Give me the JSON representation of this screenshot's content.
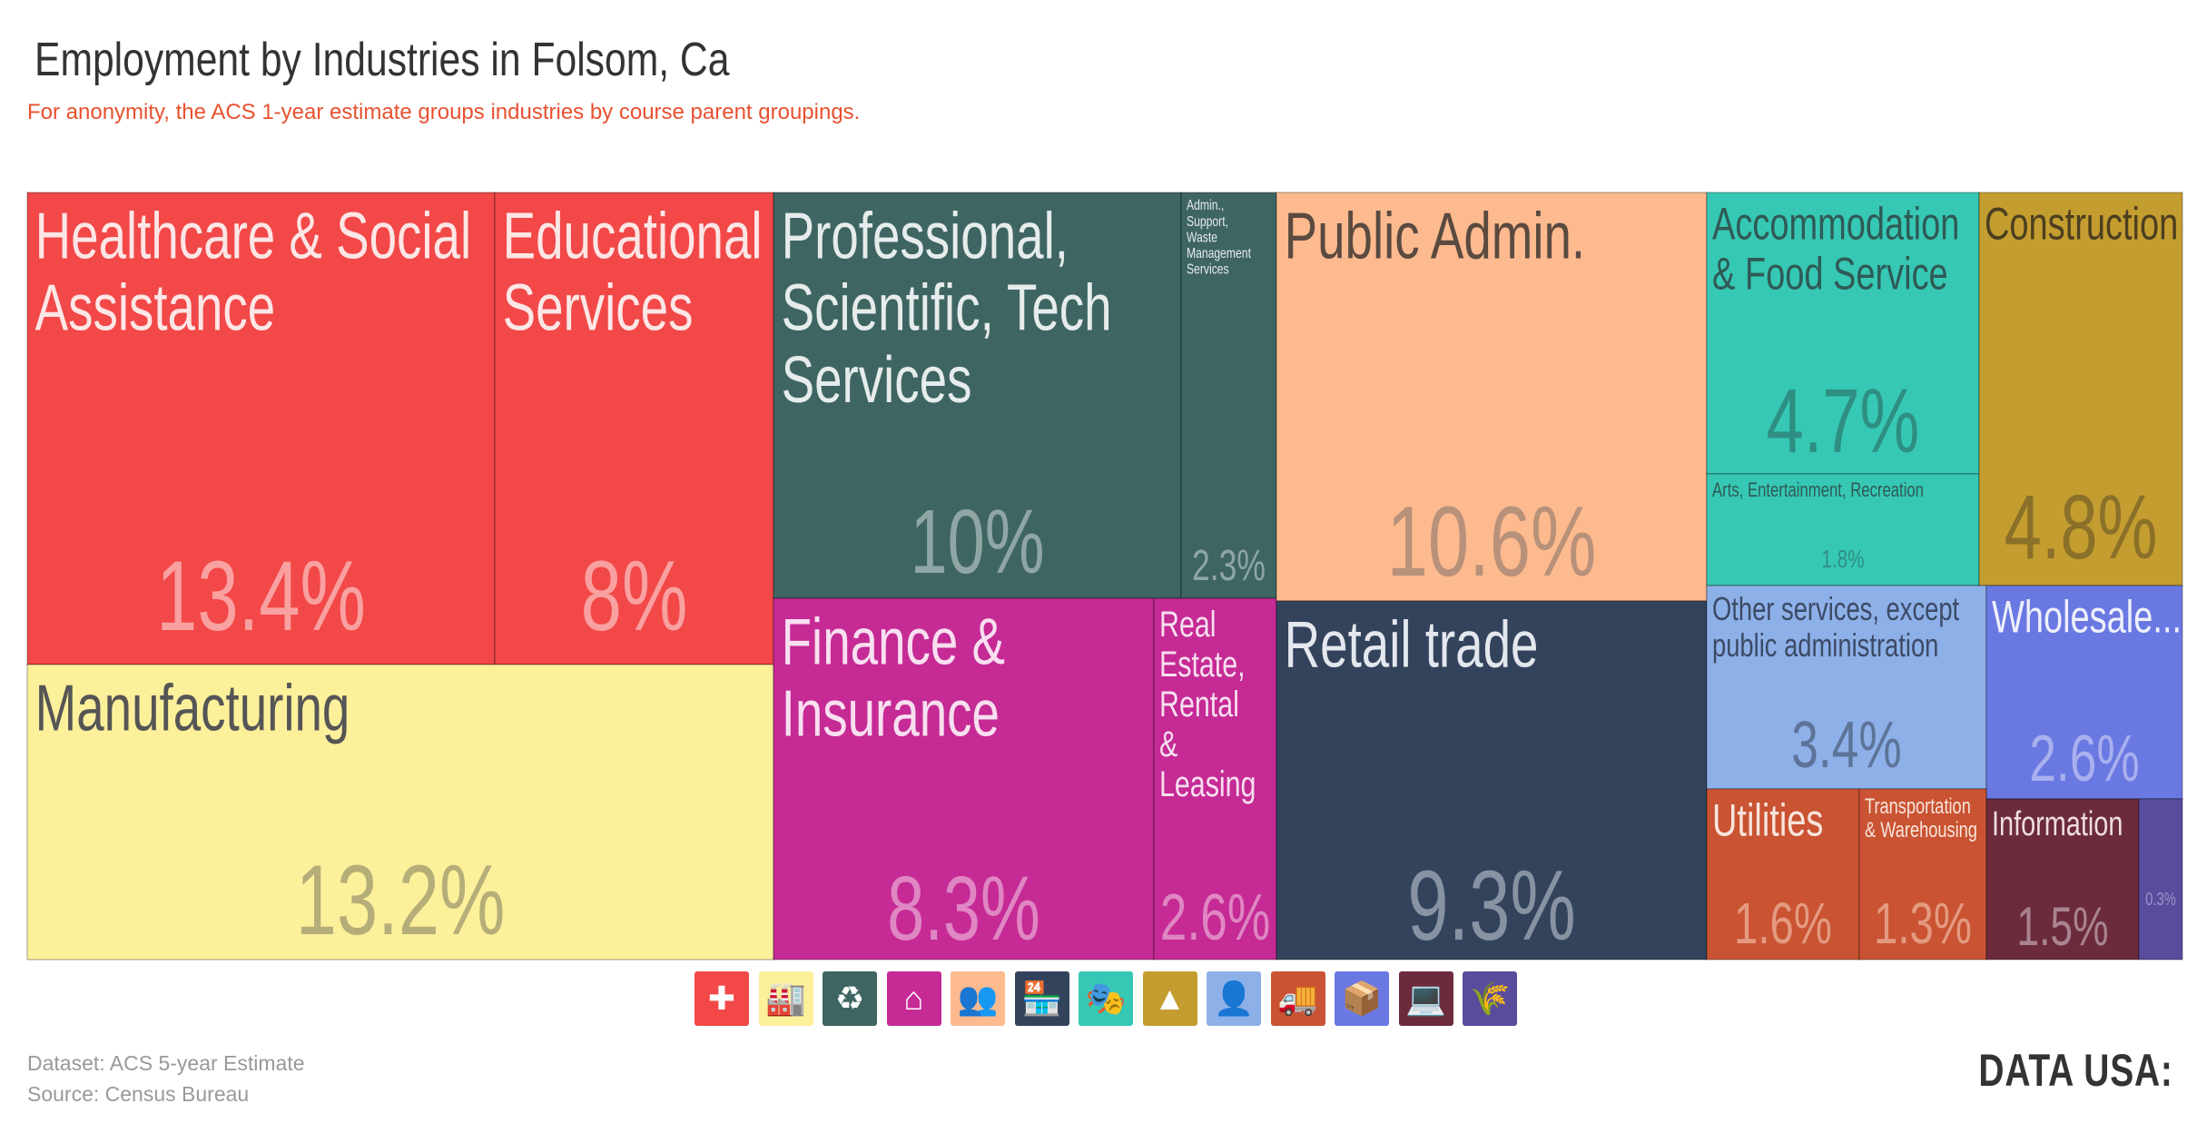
{
  "chart_data": {
    "type": "treemap",
    "title": "Employment by Industries in Folsom, Ca",
    "subtitle": "For anonymity, the ACS 1-year estimate groups industries by course parent groupings.",
    "tiles": [
      {
        "name": "Healthcare & Social Assistance",
        "value_label": "13.4%",
        "value": 13.4,
        "color": "#f24848",
        "text_color": "#fde6e6",
        "value_color": "#f9a0a0"
      },
      {
        "name": "Educational Services",
        "value_label": "8%",
        "value": 8.0,
        "color": "#f24848",
        "text_color": "#fde6e6",
        "value_color": "#f9a0a0"
      },
      {
        "name": "Manufacturing",
        "value_label": "13.2%",
        "value": 13.2,
        "color": "#fdf09b",
        "text_color": "#555555",
        "value_color": "#b5ae78"
      },
      {
        "name": "Professional, Scientific, Tech Services",
        "value_label": "10%",
        "value": 10.0,
        "color": "#3e6562",
        "text_color": "#e6ecec",
        "value_color": "#8fa6a4"
      },
      {
        "name": "Admin., Support, Waste Management Services",
        "value_label": "2.3%",
        "value": 2.3,
        "color": "#3e6562",
        "text_color": "#e6ecec",
        "value_color": "#8fa6a4"
      },
      {
        "name": "Finance & Insurance",
        "value_label": "8.3%",
        "value": 8.3,
        "color": "#c52a95",
        "text_color": "#f8dff0",
        "value_color": "#df86c3"
      },
      {
        "name": "Real Estate, Rental & Leasing",
        "value_label": "2.6%",
        "value": 2.6,
        "color": "#c52a95",
        "text_color": "#f8dff0",
        "value_color": "#df86c3"
      },
      {
        "name": "Public Admin.",
        "value_label": "10.6%",
        "value": 10.6,
        "color": "#fdba8f",
        "text_color": "#5a4a40",
        "value_color": "#b8917a"
      },
      {
        "name": "Retail trade",
        "value_label": "9.3%",
        "value": 9.3,
        "color": "#33435c",
        "text_color": "#e4e8ee",
        "value_color": "#8792a3"
      },
      {
        "name": "Accommodation & Food Service",
        "value_label": "4.7%",
        "value": 4.7,
        "color": "#36c8b4",
        "text_color": "#2f5a55",
        "value_color": "#2e8e82"
      },
      {
        "name": "Arts, Entertainment, Recreation",
        "value_label": "1.8%",
        "value": 1.8,
        "color": "#36c8b4",
        "text_color": "#2f5a55",
        "value_color": "#2e8e82"
      },
      {
        "name": "Construction",
        "value_label": "4.8%",
        "value": 4.8,
        "color": "#c49d30",
        "text_color": "#4b3f1f",
        "value_color": "#8a7028"
      },
      {
        "name": "Other services, except public administration",
        "value_label": "3.4%",
        "value": 3.4,
        "color": "#8db0e8",
        "text_color": "#3c4a66",
        "value_color": "#5d7398"
      },
      {
        "name": "Wholesale...",
        "value_label": "2.6%",
        "value": 2.6,
        "color": "#6a78e2",
        "text_color": "#eef0fb",
        "value_color": "#a8b0ee"
      },
      {
        "name": "Utilities",
        "value_label": "1.6%",
        "value": 1.6,
        "color": "#c95332",
        "text_color": "#f8e4dc",
        "value_color": "#e49a80"
      },
      {
        "name": "Transportation & Warehousing",
        "value_label": "1.3%",
        "value": 1.3,
        "color": "#c95332",
        "text_color": "#f8e4dc",
        "value_color": "#e49a80"
      },
      {
        "name": "Information",
        "value_label": "1.5%",
        "value": 1.5,
        "color": "#6b2b3c",
        "text_color": "#f0dde2",
        "value_color": "#a98390"
      },
      {
        "name": "",
        "value_label": "0.3%",
        "value": 0.3,
        "color": "#5a4c9c",
        "text_color": "#e6e2f2",
        "value_color": "#9b91c9"
      }
    ],
    "legend": [
      {
        "icon": "medical-cross-icon",
        "color": "#f24848"
      },
      {
        "icon": "factory-icon",
        "color": "#fdf09b"
      },
      {
        "icon": "recycle-icon",
        "color": "#3e6562"
      },
      {
        "icon": "house-dollar-icon",
        "color": "#c52a95"
      },
      {
        "icon": "people-icon",
        "color": "#fdba8f"
      },
      {
        "icon": "storefront-icon",
        "color": "#33435c"
      },
      {
        "icon": "theater-masks-icon",
        "color": "#36c8b4"
      },
      {
        "icon": "traffic-cone-icon",
        "color": "#c49d30"
      },
      {
        "icon": "person-icon",
        "color": "#8db0e8"
      },
      {
        "icon": "truck-icon",
        "color": "#c95332"
      },
      {
        "icon": "boxes-icon",
        "color": "#6a78e2"
      },
      {
        "icon": "computer-icon",
        "color": "#6b2b3c"
      },
      {
        "icon": "wheat-icon",
        "color": "#5a4c9c"
      }
    ]
  },
  "footer": {
    "dataset": "Dataset: ACS 5-year Estimate",
    "source": "Source: Census Bureau",
    "logo": "DATA USA:"
  }
}
